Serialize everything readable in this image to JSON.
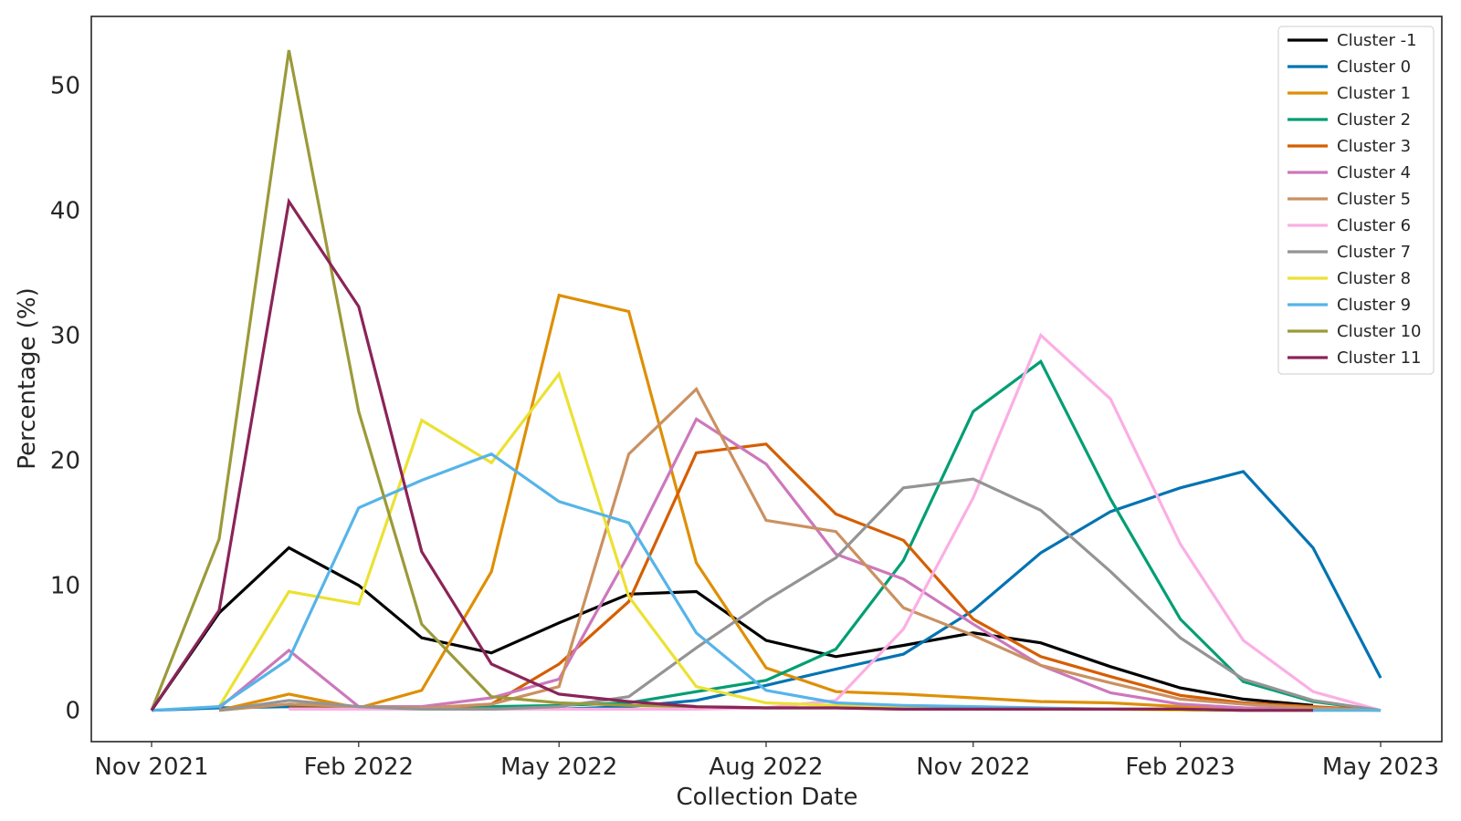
{
  "chart_data": {
    "type": "line",
    "xlabel": "Collection Date",
    "ylabel": "Percentage (%)",
    "grid": false,
    "legend_position": "top-right",
    "xlim": [
      "2021-11-01",
      "2023-05-01"
    ],
    "ylim": [
      -2.5,
      55.5
    ],
    "x_ticks": [
      {
        "date": "2021-11-01",
        "label": "Nov 2021"
      },
      {
        "date": "2022-02-01",
        "label": "Feb 2022"
      },
      {
        "date": "2022-05-01",
        "label": "May 2022"
      },
      {
        "date": "2022-08-01",
        "label": "Aug 2022"
      },
      {
        "date": "2022-11-01",
        "label": "Nov 2022"
      },
      {
        "date": "2023-02-01",
        "label": "Feb 2023"
      },
      {
        "date": "2023-05-01",
        "label": "May 2023"
      }
    ],
    "y_ticks": [
      0,
      10,
      20,
      30,
      40,
      50
    ],
    "series": [
      {
        "name": "Cluster -1",
        "color": "#000000",
        "points": [
          [
            "2021-11-01",
            0
          ],
          [
            "2021-12-01",
            7.8
          ],
          [
            "2022-01-01",
            13
          ],
          [
            "2022-02-01",
            10
          ],
          [
            "2022-03-01",
            5.8
          ],
          [
            "2022-04-01",
            4.6
          ],
          [
            "2022-05-01",
            7
          ],
          [
            "2022-06-01",
            9.3
          ],
          [
            "2022-07-01",
            9.5
          ],
          [
            "2022-08-01",
            5.6
          ],
          [
            "2022-09-01",
            4.3
          ],
          [
            "2022-10-01",
            5.2
          ],
          [
            "2022-11-01",
            6.2
          ],
          [
            "2022-12-01",
            5.4
          ],
          [
            "2023-01-01",
            3.5
          ],
          [
            "2023-02-01",
            1.8
          ],
          [
            "2023-03-01",
            0.9
          ],
          [
            "2023-04-01",
            0.4
          ]
        ]
      },
      {
        "name": "Cluster 0",
        "color": "#0173B2",
        "points": [
          [
            "2021-11-01",
            0
          ],
          [
            "2021-12-01",
            0.2
          ],
          [
            "2022-01-01",
            0.3
          ],
          [
            "2022-02-01",
            0.2
          ],
          [
            "2022-03-01",
            0.1
          ],
          [
            "2022-04-01",
            0.1
          ],
          [
            "2022-05-01",
            0.1
          ],
          [
            "2022-06-01",
            0.3
          ],
          [
            "2022-07-01",
            0.8
          ],
          [
            "2022-08-01",
            2
          ],
          [
            "2022-09-01",
            3.3
          ],
          [
            "2022-10-01",
            4.5
          ],
          [
            "2022-11-01",
            8
          ],
          [
            "2022-12-01",
            12.6
          ],
          [
            "2023-01-01",
            15.9
          ],
          [
            "2023-02-01",
            17.8
          ],
          [
            "2023-03-01",
            19.1
          ],
          [
            "2023-04-01",
            13
          ],
          [
            "2023-05-01",
            2.6
          ]
        ]
      },
      {
        "name": "Cluster 1",
        "color": "#DE8F05",
        "points": [
          [
            "2021-12-01",
            0
          ],
          [
            "2022-01-01",
            1.3
          ],
          [
            "2022-02-01",
            0.2
          ],
          [
            "2022-03-01",
            1.6
          ],
          [
            "2022-04-01",
            11.1
          ],
          [
            "2022-05-01",
            33.2
          ],
          [
            "2022-06-01",
            31.9
          ],
          [
            "2022-07-01",
            11.8
          ],
          [
            "2022-08-01",
            3.4
          ],
          [
            "2022-09-01",
            1.5
          ],
          [
            "2022-10-01",
            1.3
          ],
          [
            "2022-11-01",
            1
          ],
          [
            "2022-12-01",
            0.7
          ],
          [
            "2023-01-01",
            0.6
          ],
          [
            "2023-02-01",
            0.3
          ],
          [
            "2023-03-01",
            0.2
          ],
          [
            "2023-04-01",
            0.1
          ],
          [
            "2023-05-01",
            0
          ]
        ]
      },
      {
        "name": "Cluster 2",
        "color": "#029E73",
        "points": [
          [
            "2022-01-01",
            0.5
          ],
          [
            "2022-02-01",
            0.3
          ],
          [
            "2022-03-01",
            0.2
          ],
          [
            "2022-04-01",
            0.3
          ],
          [
            "2022-05-01",
            0.4
          ],
          [
            "2022-06-01",
            0.6
          ],
          [
            "2022-07-01",
            1.5
          ],
          [
            "2022-08-01",
            2.4
          ],
          [
            "2022-09-01",
            4.9
          ],
          [
            "2022-10-01",
            12
          ],
          [
            "2022-11-01",
            23.9
          ],
          [
            "2022-12-01",
            27.9
          ],
          [
            "2023-01-01",
            16.9
          ],
          [
            "2023-02-01",
            7.3
          ],
          [
            "2023-03-01",
            2.3
          ],
          [
            "2023-04-01",
            0.7
          ],
          [
            "2023-05-01",
            0
          ]
        ]
      },
      {
        "name": "Cluster 3",
        "color": "#D55E00",
        "points": [
          [
            "2022-01-01",
            0.2
          ],
          [
            "2022-02-01",
            0.1
          ],
          [
            "2022-03-01",
            0.1
          ],
          [
            "2022-04-01",
            0.5
          ],
          [
            "2022-05-01",
            3.7
          ],
          [
            "2022-06-01",
            8.7
          ],
          [
            "2022-07-01",
            20.6
          ],
          [
            "2022-08-01",
            21.3
          ],
          [
            "2022-09-01",
            15.7
          ],
          [
            "2022-10-01",
            13.6
          ],
          [
            "2022-11-01",
            7.3
          ],
          [
            "2022-12-01",
            4.3
          ],
          [
            "2023-01-01",
            2.7
          ],
          [
            "2023-02-01",
            1.2
          ],
          [
            "2023-03-01",
            0.6
          ],
          [
            "2023-04-01",
            0.3
          ],
          [
            "2023-05-01",
            0
          ]
        ]
      },
      {
        "name": "Cluster 4",
        "color": "#CC78BC",
        "points": [
          [
            "2021-12-01",
            0.2
          ],
          [
            "2022-01-01",
            4.8
          ],
          [
            "2022-02-01",
            0.3
          ],
          [
            "2022-03-01",
            0.3
          ],
          [
            "2022-04-01",
            1
          ],
          [
            "2022-05-01",
            2.5
          ],
          [
            "2022-06-01",
            12.5
          ],
          [
            "2022-07-01",
            23.3
          ],
          [
            "2022-08-01",
            19.7
          ],
          [
            "2022-09-01",
            12.5
          ],
          [
            "2022-10-01",
            10.5
          ],
          [
            "2022-11-01",
            6.9
          ],
          [
            "2022-12-01",
            3.6
          ],
          [
            "2023-01-01",
            1.4
          ],
          [
            "2023-02-01",
            0.5
          ],
          [
            "2023-03-01",
            0.2
          ],
          [
            "2023-04-01",
            0.1
          ],
          [
            "2023-05-01",
            0
          ]
        ]
      },
      {
        "name": "Cluster 5",
        "color": "#CA9161",
        "points": [
          [
            "2021-12-01",
            0
          ],
          [
            "2022-01-01",
            0.5
          ],
          [
            "2022-02-01",
            0.3
          ],
          [
            "2022-03-01",
            0.2
          ],
          [
            "2022-04-01",
            0.5
          ],
          [
            "2022-05-01",
            1.9
          ],
          [
            "2022-06-01",
            20.5
          ],
          [
            "2022-07-01",
            25.7
          ],
          [
            "2022-08-01",
            15.2
          ],
          [
            "2022-09-01",
            14.3
          ],
          [
            "2022-10-01",
            8.2
          ],
          [
            "2022-11-01",
            6
          ],
          [
            "2022-12-01",
            3.6
          ],
          [
            "2023-01-01",
            2.2
          ],
          [
            "2023-02-01",
            0.9
          ],
          [
            "2023-03-01",
            0.5
          ],
          [
            "2023-04-01",
            0.2
          ],
          [
            "2023-05-01",
            0
          ]
        ]
      },
      {
        "name": "Cluster 6",
        "color": "#FBAFE4",
        "points": [
          [
            "2022-01-01",
            0.1
          ],
          [
            "2022-02-01",
            0.1
          ],
          [
            "2022-03-01",
            0.1
          ],
          [
            "2022-04-01",
            0.1
          ],
          [
            "2022-05-01",
            0.1
          ],
          [
            "2022-06-01",
            0.1
          ],
          [
            "2022-07-01",
            0.1
          ],
          [
            "2022-08-01",
            0.2
          ],
          [
            "2022-09-01",
            0.8
          ],
          [
            "2022-10-01",
            6.5
          ],
          [
            "2022-11-01",
            17
          ],
          [
            "2022-12-01",
            30
          ],
          [
            "2023-01-01",
            24.9
          ],
          [
            "2023-02-01",
            13.3
          ],
          [
            "2023-03-01",
            5.6
          ],
          [
            "2023-04-01",
            1.5
          ],
          [
            "2023-05-01",
            0
          ]
        ]
      },
      {
        "name": "Cluster 7",
        "color": "#949494",
        "points": [
          [
            "2021-12-01",
            0
          ],
          [
            "2022-01-01",
            0.8
          ],
          [
            "2022-02-01",
            0.3
          ],
          [
            "2022-03-01",
            0.1
          ],
          [
            "2022-04-01",
            0.1
          ],
          [
            "2022-05-01",
            0.3
          ],
          [
            "2022-06-01",
            1.1
          ],
          [
            "2022-07-01",
            5
          ],
          [
            "2022-08-01",
            8.8
          ],
          [
            "2022-09-01",
            12.2
          ],
          [
            "2022-10-01",
            17.8
          ],
          [
            "2022-11-01",
            18.5
          ],
          [
            "2022-12-01",
            16
          ],
          [
            "2023-01-01",
            11.1
          ],
          [
            "2023-02-01",
            5.8
          ],
          [
            "2023-03-01",
            2.5
          ],
          [
            "2023-04-01",
            0.8
          ],
          [
            "2023-05-01",
            0
          ]
        ]
      },
      {
        "name": "Cluster 8",
        "color": "#ECE133",
        "points": [
          [
            "2021-12-01",
            0.3
          ],
          [
            "2022-01-01",
            9.5
          ],
          [
            "2022-02-01",
            8.5
          ],
          [
            "2022-03-01",
            23.2
          ],
          [
            "2022-04-01",
            19.8
          ],
          [
            "2022-05-01",
            26.9
          ],
          [
            "2022-06-01",
            9.1
          ],
          [
            "2022-07-01",
            1.9
          ],
          [
            "2022-08-01",
            0.6
          ],
          [
            "2022-09-01",
            0.4
          ],
          [
            "2022-10-01",
            0.3
          ],
          [
            "2022-11-01",
            0.2
          ],
          [
            "2022-12-01",
            0.1
          ],
          [
            "2023-01-01",
            0.1
          ],
          [
            "2023-02-01",
            0
          ],
          [
            "2023-03-01",
            0
          ],
          [
            "2023-04-01",
            0
          ],
          [
            "2023-05-01",
            0
          ]
        ]
      },
      {
        "name": "Cluster 9",
        "color": "#56B4E9",
        "points": [
          [
            "2021-11-01",
            0
          ],
          [
            "2021-12-01",
            0.3
          ],
          [
            "2022-01-01",
            4.1
          ],
          [
            "2022-02-01",
            16.2
          ],
          [
            "2022-03-01",
            18.4
          ],
          [
            "2022-04-01",
            20.5
          ],
          [
            "2022-05-01",
            16.7
          ],
          [
            "2022-06-01",
            15
          ],
          [
            "2022-07-01",
            6.2
          ],
          [
            "2022-08-01",
            1.6
          ],
          [
            "2022-09-01",
            0.6
          ],
          [
            "2022-10-01",
            0.4
          ],
          [
            "2022-11-01",
            0.3
          ],
          [
            "2022-12-01",
            0.2
          ],
          [
            "2023-01-01",
            0.1
          ],
          [
            "2023-02-01",
            0.1
          ],
          [
            "2023-03-01",
            0
          ],
          [
            "2023-04-01",
            0
          ],
          [
            "2023-05-01",
            0
          ]
        ]
      },
      {
        "name": "Cluster 10",
        "color": "#9B9A3A",
        "points": [
          [
            "2021-11-01",
            0
          ],
          [
            "2021-12-01",
            13.7
          ],
          [
            "2022-01-01",
            52.8
          ],
          [
            "2022-02-01",
            23.9
          ],
          [
            "2022-03-01",
            6.9
          ],
          [
            "2022-04-01",
            1.1
          ],
          [
            "2022-05-01",
            0.6
          ],
          [
            "2022-06-01",
            0.4
          ],
          [
            "2022-07-01",
            0.3
          ],
          [
            "2022-08-01",
            0.2
          ],
          [
            "2022-09-01",
            0.2
          ],
          [
            "2022-10-01",
            0.1
          ],
          [
            "2022-11-01",
            0.1
          ],
          [
            "2022-12-01",
            0.1
          ],
          [
            "2023-01-01",
            0.1
          ],
          [
            "2023-02-01",
            0.1
          ],
          [
            "2023-03-01",
            0
          ],
          [
            "2023-04-01",
            0
          ]
        ]
      },
      {
        "name": "Cluster 11",
        "color": "#8A2458",
        "points": [
          [
            "2021-11-01",
            0
          ],
          [
            "2021-12-01",
            8
          ],
          [
            "2022-01-01",
            40.7
          ],
          [
            "2022-02-01",
            32.3
          ],
          [
            "2022-03-01",
            12.7
          ],
          [
            "2022-04-01",
            3.7
          ],
          [
            "2022-05-01",
            1.3
          ],
          [
            "2022-06-01",
            0.7
          ],
          [
            "2022-07-01",
            0.3
          ],
          [
            "2022-08-01",
            0.2
          ],
          [
            "2022-09-01",
            0.2
          ],
          [
            "2022-10-01",
            0.1
          ],
          [
            "2022-11-01",
            0.1
          ],
          [
            "2022-12-01",
            0.1
          ],
          [
            "2023-01-01",
            0.1
          ],
          [
            "2023-02-01",
            0.1
          ],
          [
            "2023-03-01",
            0
          ],
          [
            "2023-04-01",
            0
          ]
        ]
      }
    ]
  }
}
